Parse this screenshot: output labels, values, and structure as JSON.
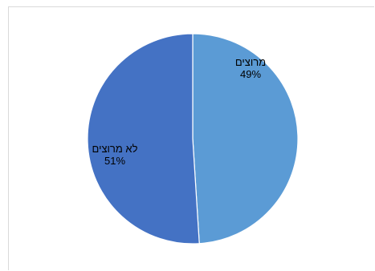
{
  "chart_data": {
    "type": "pie",
    "title": "",
    "slices": [
      {
        "label": "מרוצים",
        "value": 49,
        "value_label": "49%",
        "color": "#5b9bd5"
      },
      {
        "label": "לא מרוצים",
        "value": 51,
        "value_label": "51%",
        "color": "#4472c4"
      }
    ],
    "legend": "none"
  }
}
